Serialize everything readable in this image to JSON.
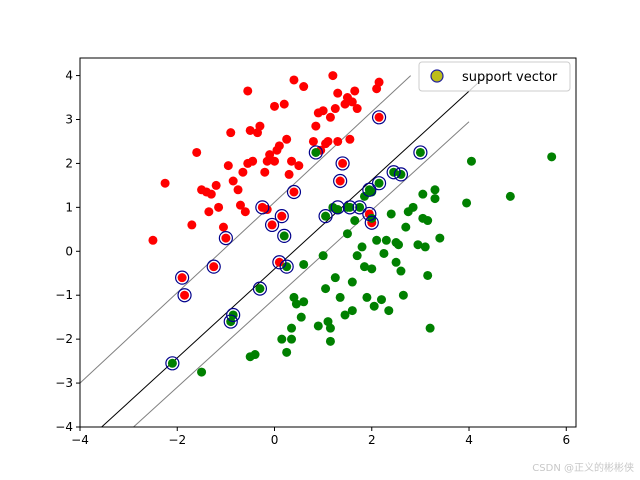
{
  "chart_data": {
    "type": "scatter",
    "title": "",
    "xlabel": "",
    "ylabel": "",
    "xlim": [
      -4,
      6.2
    ],
    "ylim": [
      -4,
      4.4
    ],
    "x_ticks": [
      -4,
      -2,
      0,
      2,
      4,
      6
    ],
    "y_ticks": [
      -4,
      -3,
      -2,
      -1,
      0,
      1,
      2,
      3,
      4
    ],
    "grid": false,
    "legend": {
      "position": "top-right",
      "entries": [
        {
          "label": "support vector",
          "marker_fill": "#bdbd1a",
          "marker_edge": "#1f1f9e"
        }
      ]
    },
    "colors": {
      "class_a": "#ff0000",
      "class_b": "#008000",
      "support_vector_edge": "#00008b",
      "decision_line": "#000000",
      "margin_line": "#808080"
    },
    "lines": [
      {
        "role": "decision",
        "x": [
          -4,
          4.35
        ],
        "y": [
          -4.45,
          4.0
        ]
      },
      {
        "role": "margin-upper",
        "x": [
          -4,
          2.8
        ],
        "y": [
          -3.0,
          4.0
        ]
      },
      {
        "role": "margin-lower",
        "x": [
          -2.9,
          4.0
        ],
        "y": [
          -4.0,
          2.95
        ]
      }
    ],
    "series": [
      {
        "class": "a",
        "points": [
          [
            -2.5,
            0.25
          ],
          [
            -2.25,
            1.55
          ],
          [
            -1.9,
            -0.6
          ],
          [
            -1.85,
            -1.0
          ],
          [
            -1.7,
            0.6
          ],
          [
            -1.6,
            2.25
          ],
          [
            -1.5,
            1.4
          ],
          [
            -1.4,
            1.35
          ],
          [
            -1.35,
            0.9
          ],
          [
            -1.3,
            1.3
          ],
          [
            -1.25,
            -0.35
          ],
          [
            -1.2,
            1.5
          ],
          [
            -1.15,
            1.0
          ],
          [
            -1.05,
            0.55
          ],
          [
            -1.0,
            0.3
          ],
          [
            -0.95,
            1.95
          ],
          [
            -0.9,
            2.7
          ],
          [
            -0.85,
            1.6
          ],
          [
            -0.75,
            1.4
          ],
          [
            -0.7,
            1.05
          ],
          [
            -0.65,
            1.8
          ],
          [
            -0.6,
            0.9
          ],
          [
            -0.55,
            2.0
          ],
          [
            -0.55,
            3.65
          ],
          [
            -0.5,
            2.75
          ],
          [
            -0.45,
            2.05
          ],
          [
            -0.35,
            2.7
          ],
          [
            -0.3,
            2.85
          ],
          [
            -0.25,
            1.0
          ],
          [
            -0.2,
            1.8
          ],
          [
            -0.15,
            2.05
          ],
          [
            -0.1,
            2.2
          ],
          [
            -0.05,
            0.6
          ],
          [
            0.0,
            2.05
          ],
          [
            0.0,
            3.3
          ],
          [
            0.05,
            2.3
          ],
          [
            0.1,
            -0.25
          ],
          [
            0.1,
            2.4
          ],
          [
            0.15,
            0.8
          ],
          [
            0.2,
            3.35
          ],
          [
            0.25,
            2.55
          ],
          [
            0.3,
            1.75
          ],
          [
            0.35,
            2.05
          ],
          [
            0.4,
            1.35
          ],
          [
            0.4,
            3.9
          ],
          [
            0.5,
            1.95
          ],
          [
            0.6,
            3.75
          ],
          [
            0.8,
            2.5
          ],
          [
            0.85,
            2.85
          ],
          [
            0.9,
            3.15
          ],
          [
            0.95,
            2.3
          ],
          [
            1.0,
            3.2
          ],
          [
            1.1,
            2.5
          ],
          [
            1.15,
            3.05
          ],
          [
            1.2,
            4.0
          ],
          [
            1.25,
            3.25
          ],
          [
            1.3,
            3.6
          ],
          [
            1.35,
            1.6
          ],
          [
            1.4,
            2.0
          ],
          [
            1.45,
            3.35
          ],
          [
            1.5,
            3.5
          ],
          [
            1.55,
            2.55
          ],
          [
            1.6,
            3.4
          ],
          [
            1.65,
            3.65
          ],
          [
            1.7,
            3.25
          ],
          [
            1.95,
            0.85
          ],
          [
            2.0,
            0.65
          ],
          [
            2.1,
            3.7
          ],
          [
            2.15,
            3.05
          ],
          [
            2.15,
            3.85
          ],
          [
            1.3,
            2.5
          ],
          [
            1.05,
            2.45
          ],
          [
            -0.15,
            0.95
          ]
        ]
      },
      {
        "class": "b",
        "points": [
          [
            -2.1,
            -2.55
          ],
          [
            -1.5,
            -2.75
          ],
          [
            -0.9,
            -1.6
          ],
          [
            -0.85,
            -1.45
          ],
          [
            -0.5,
            -2.4
          ],
          [
            -0.4,
            -2.35
          ],
          [
            -0.3,
            -0.85
          ],
          [
            0.15,
            -2.0
          ],
          [
            0.2,
            0.35
          ],
          [
            0.25,
            -0.35
          ],
          [
            0.25,
            -2.3
          ],
          [
            0.35,
            -1.75
          ],
          [
            0.35,
            -2.0
          ],
          [
            0.4,
            -1.05
          ],
          [
            0.45,
            -1.2
          ],
          [
            0.55,
            -1.5
          ],
          [
            0.6,
            -0.3
          ],
          [
            0.6,
            -1.15
          ],
          [
            0.9,
            -1.7
          ],
          [
            1.0,
            -0.1
          ],
          [
            1.05,
            0.8
          ],
          [
            1.05,
            -0.85
          ],
          [
            1.1,
            -1.6
          ],
          [
            1.15,
            -1.75
          ],
          [
            1.15,
            -2.05
          ],
          [
            1.25,
            -0.6
          ],
          [
            1.3,
            0.95
          ],
          [
            1.35,
            -1.05
          ],
          [
            1.45,
            -1.45
          ],
          [
            1.5,
            0.4
          ],
          [
            1.55,
            1.0
          ],
          [
            1.6,
            -0.7
          ],
          [
            1.6,
            -1.35
          ],
          [
            1.65,
            0.7
          ],
          [
            1.7,
            -0.1
          ],
          [
            1.75,
            1.0
          ],
          [
            1.8,
            0.1
          ],
          [
            1.85,
            1.25
          ],
          [
            1.85,
            -0.35
          ],
          [
            1.9,
            -1.05
          ],
          [
            1.95,
            1.4
          ],
          [
            2.0,
            0.75
          ],
          [
            2.0,
            -0.4
          ],
          [
            2.05,
            -1.25
          ],
          [
            2.1,
            0.25
          ],
          [
            2.15,
            1.55
          ],
          [
            2.2,
            -1.1
          ],
          [
            2.25,
            -0.05
          ],
          [
            2.3,
            0.25
          ],
          [
            2.35,
            -1.35
          ],
          [
            2.4,
            0.85
          ],
          [
            2.45,
            1.8
          ],
          [
            2.5,
            0.2
          ],
          [
            2.5,
            -0.25
          ],
          [
            2.55,
            0.15
          ],
          [
            2.6,
            1.75
          ],
          [
            2.6,
            -0.45
          ],
          [
            2.65,
            -1.0
          ],
          [
            2.7,
            0.55
          ],
          [
            2.75,
            0.9
          ],
          [
            2.85,
            1.0
          ],
          [
            2.95,
            0.15
          ],
          [
            3.0,
            2.25
          ],
          [
            3.05,
            1.3
          ],
          [
            3.05,
            0.75
          ],
          [
            3.1,
            0.1
          ],
          [
            3.15,
            0.7
          ],
          [
            3.15,
            -0.55
          ],
          [
            3.2,
            -1.75
          ],
          [
            3.3,
            1.4
          ],
          [
            3.3,
            1.2
          ],
          [
            3.4,
            0.3
          ],
          [
            3.95,
            1.1
          ],
          [
            4.05,
            2.05
          ],
          [
            4.85,
            1.25
          ],
          [
            5.7,
            2.15
          ],
          [
            1.2,
            1.0
          ],
          [
            1.5,
            1.0
          ],
          [
            2.0,
            1.35
          ],
          [
            0.85,
            2.25
          ]
        ]
      }
    ],
    "support_vectors": [
      [
        -2.1,
        -2.55
      ],
      [
        -1.9,
        -0.6
      ],
      [
        -1.85,
        -1.0
      ],
      [
        -1.25,
        -0.35
      ],
      [
        -1.0,
        0.3
      ],
      [
        -0.9,
        -1.6
      ],
      [
        -0.85,
        -1.45
      ],
      [
        -0.3,
        -0.85
      ],
      [
        -0.25,
        1.0
      ],
      [
        -0.05,
        0.6
      ],
      [
        0.1,
        -0.25
      ],
      [
        0.15,
        0.8
      ],
      [
        0.2,
        0.35
      ],
      [
        0.25,
        -0.35
      ],
      [
        0.4,
        1.35
      ],
      [
        0.85,
        2.25
      ],
      [
        1.05,
        0.8
      ],
      [
        1.3,
        1.0
      ],
      [
        1.35,
        1.6
      ],
      [
        1.4,
        2.0
      ],
      [
        1.55,
        1.0
      ],
      [
        1.75,
        1.0
      ],
      [
        1.95,
        1.4
      ],
      [
        1.95,
        0.85
      ],
      [
        2.0,
        0.65
      ],
      [
        2.15,
        1.55
      ],
      [
        2.15,
        3.05
      ],
      [
        2.45,
        1.8
      ],
      [
        2.6,
        1.75
      ],
      [
        3.0,
        2.25
      ]
    ],
    "watermark": "CSDN @正义的彬彬侠"
  }
}
